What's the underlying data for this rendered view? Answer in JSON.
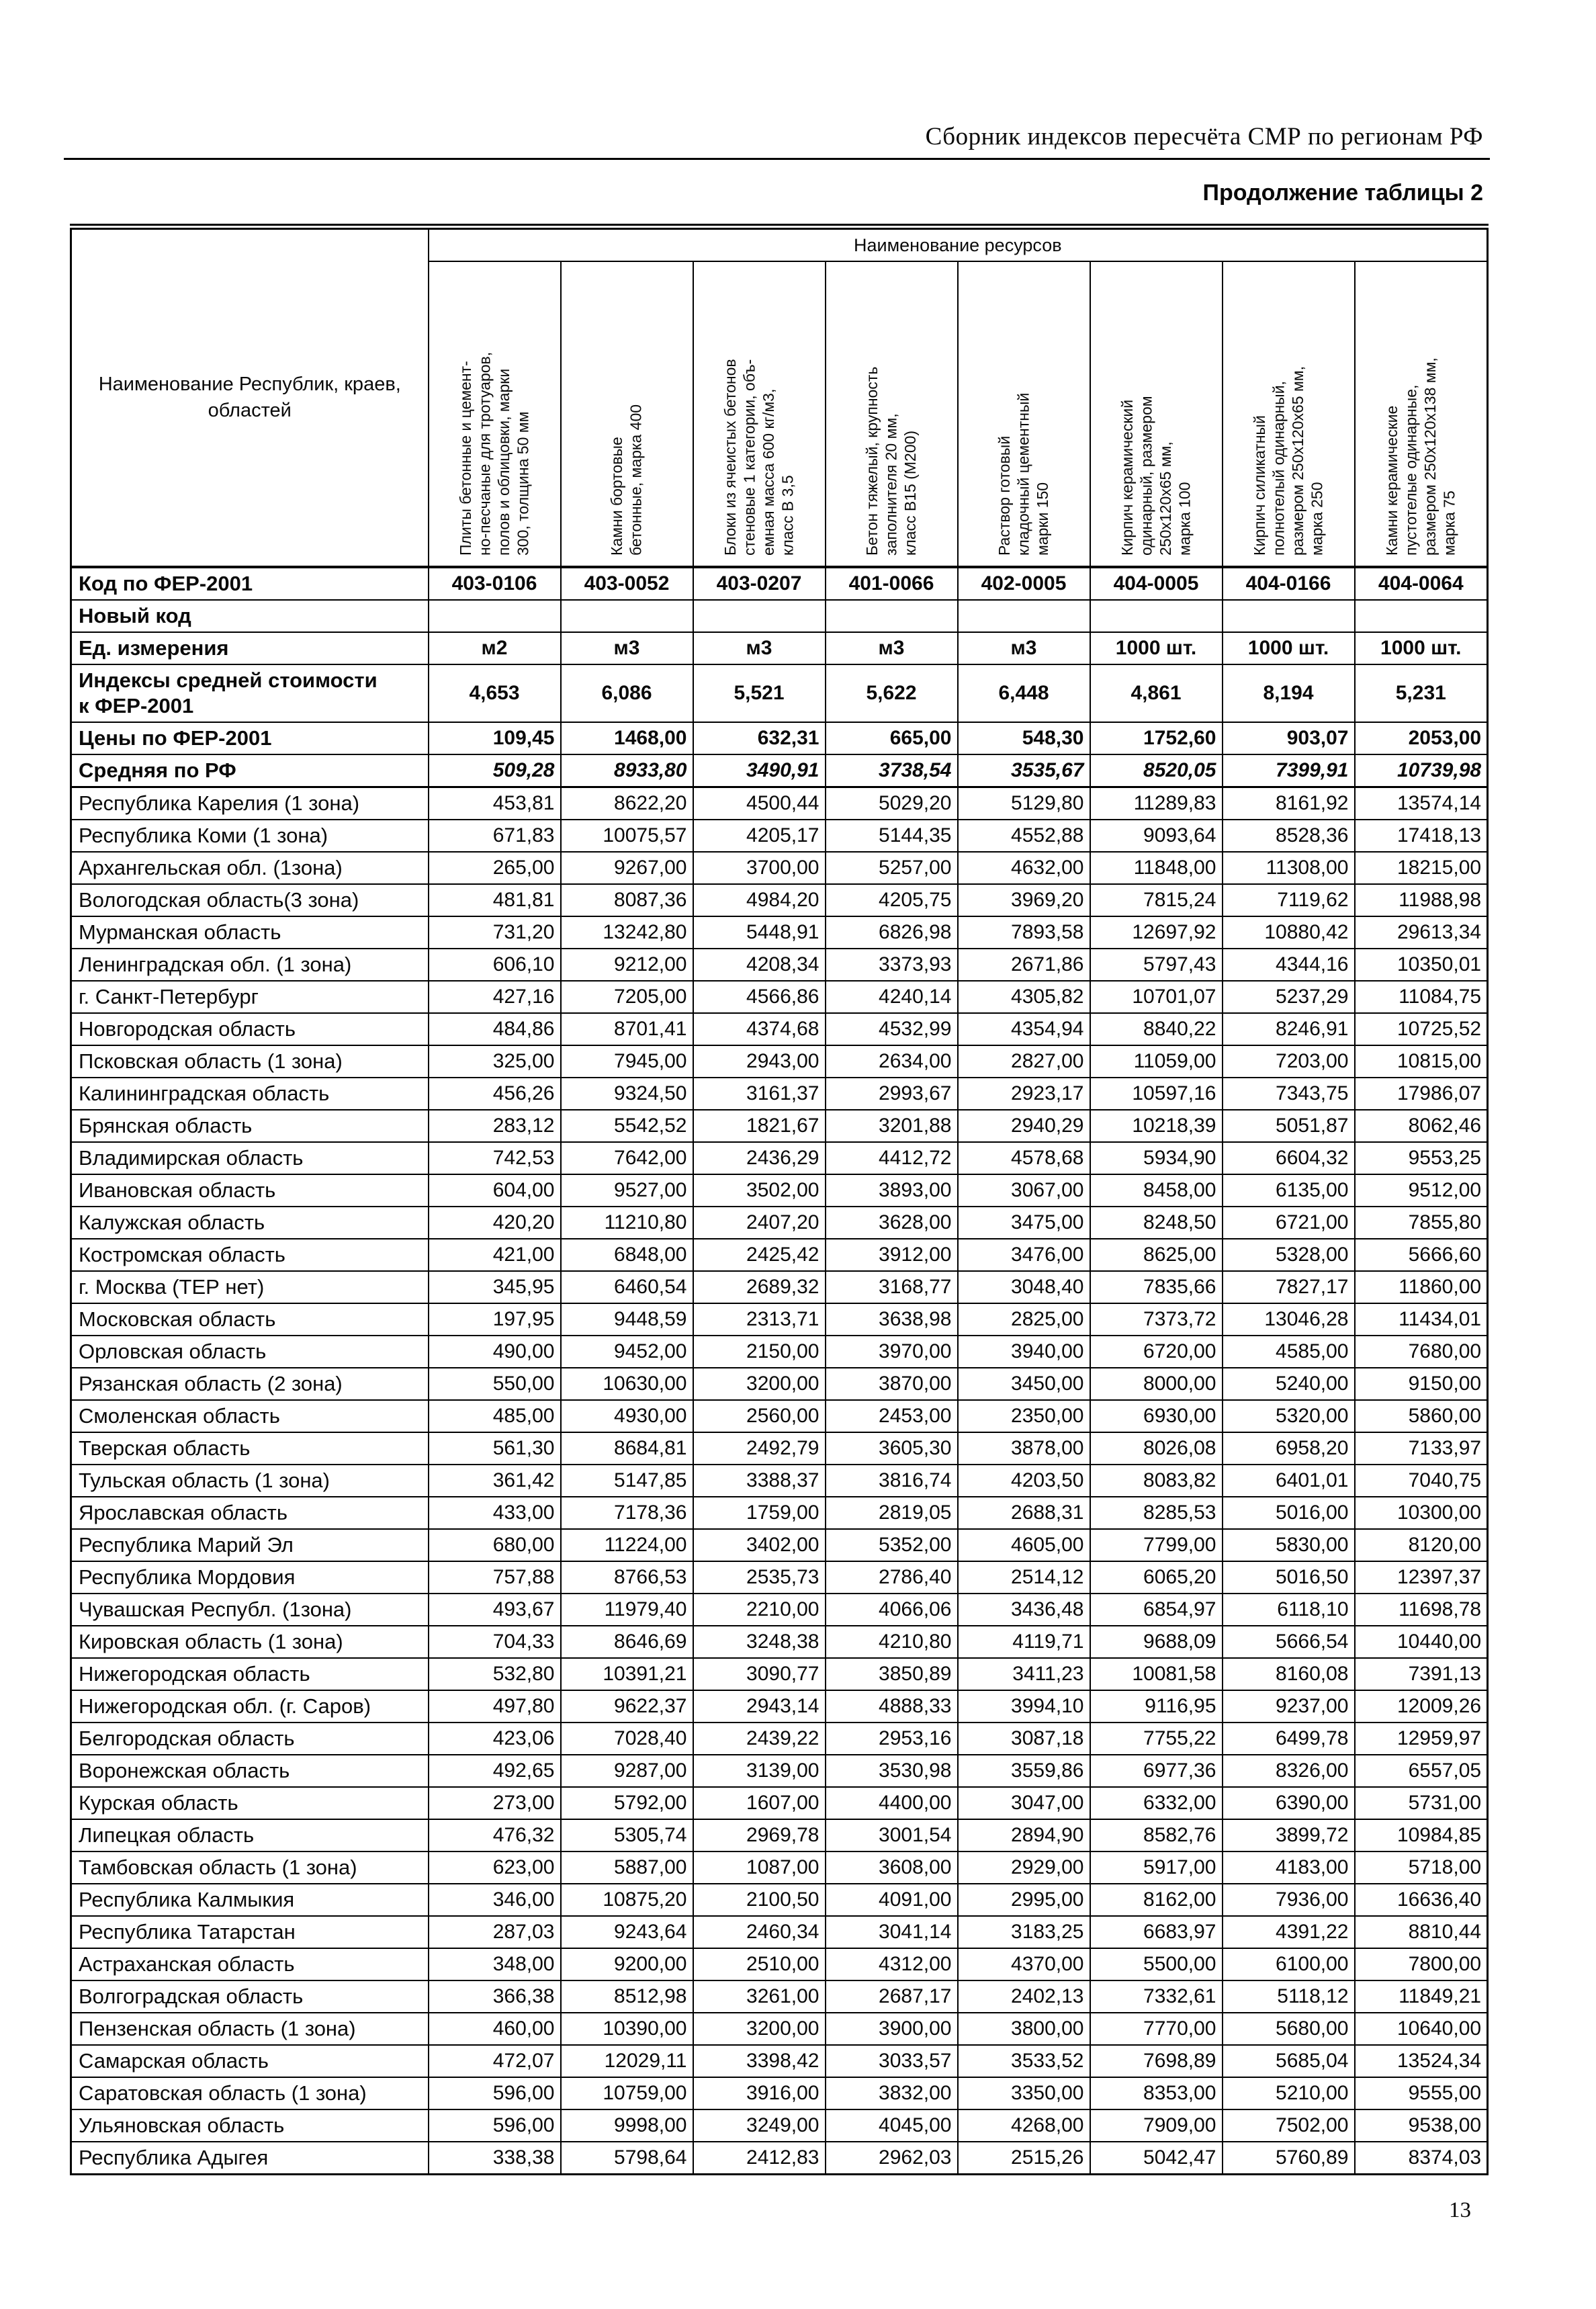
{
  "page": {
    "doc_header": "Сборник индексов пересчёта СМР  по регионам РФ",
    "table_caption": "Продолжение таблицы 2",
    "page_number": "13"
  },
  "table": {
    "name_column_header": "Наименование Республик, краев,\nобластей",
    "resources_header": "Наименование ресурсов",
    "resource_columns": [
      "Плиты  бетонные и цемент-\nно-песчаные  для тротуаров,\nполов и облицовки, марки\n300, толщина 50 мм",
      "Камни бортовые\nбетонные, марка 400",
      "Блоки из ячеистых бетонов\nстеновые 1 категории, объ-\nемная масса 600 кг/м3,\nкласс В 3,5",
      "Бетон тяжелый, крупность\nзаполнителя 20 мм,\nкласс В15 (М200)",
      "Раствор готовый\nкладочный цементный\nмарки 150",
      "Кирпич керамический\nодинарный, размером\n250х120х65 мм,\nмарка 100",
      "Кирпич силикатный\nполнотелый одинарный,\nразмером 250х120х65 мм,\nмарка 250",
      "Камни керамические\nпустотелые одинарные,\nразмером 250х120х138 мм,\nмарка 75"
    ],
    "meta_rows": [
      {
        "label": "Код по ФЕР-2001",
        "values": [
          "403-0106",
          "403-0052",
          "403-0207",
          "401-0066",
          "402-0005",
          "404-0005",
          "404-0166",
          "404-0064"
        ]
      },
      {
        "label": "Новый код",
        "values": [
          "",
          "",
          "",
          "",
          "",
          "",
          "",
          ""
        ]
      },
      {
        "label": "Ед. измерения",
        "values": [
          "м2",
          "м3",
          "м3",
          "м3",
          "м3",
          "1000 шт.",
          "1000 шт.",
          "1000 шт."
        ]
      },
      {
        "label": "Индексы средней стоимости\nк ФЕР-2001",
        "values": [
          "4,653",
          "6,086",
          "5,521",
          "5,622",
          "6,448",
          "4,861",
          "8,194",
          "5,231"
        ]
      },
      {
        "label": "Цены по ФЕР-2001",
        "values": [
          "109,45",
          "1468,00",
          "632,31",
          "665,00",
          "548,30",
          "1752,60",
          "903,07",
          "2053,00"
        ]
      },
      {
        "label": "Средняя по РФ",
        "values": [
          "509,28",
          "8933,80",
          "3490,91",
          "3738,54",
          "3535,67",
          "8520,05",
          "7399,91",
          "10739,98"
        ]
      }
    ],
    "regions": [
      {
        "name": "Республика Карелия (1 зона)",
        "values": [
          "453,81",
          "8622,20",
          "4500,44",
          "5029,20",
          "5129,80",
          "11289,83",
          "8161,92",
          "13574,14"
        ]
      },
      {
        "name": "Республика Коми (1 зона)",
        "values": [
          "671,83",
          "10075,57",
          "4205,17",
          "5144,35",
          "4552,88",
          "9093,64",
          "8528,36",
          "17418,13"
        ]
      },
      {
        "name": "Архангельская обл. (1зона)",
        "values": [
          "265,00",
          "9267,00",
          "3700,00",
          "5257,00",
          "4632,00",
          "11848,00",
          "11308,00",
          "18215,00"
        ]
      },
      {
        "name": "Вологодская область(3 зона)",
        "values": [
          "481,81",
          "8087,36",
          "4984,20",
          "4205,75",
          "3969,20",
          "7815,24",
          "7119,62",
          "11988,98"
        ]
      },
      {
        "name": "Мурманская область",
        "values": [
          "731,20",
          "13242,80",
          "5448,91",
          "6826,98",
          "7893,58",
          "12697,92",
          "10880,42",
          "29613,34"
        ]
      },
      {
        "name": "Ленинградская обл. (1 зона)",
        "values": [
          "606,10",
          "9212,00",
          "4208,34",
          "3373,93",
          "2671,86",
          "5797,43",
          "4344,16",
          "10350,01"
        ]
      },
      {
        "name": "г. Санкт-Петербург",
        "values": [
          "427,16",
          "7205,00",
          "4566,86",
          "4240,14",
          "4305,82",
          "10701,07",
          "5237,29",
          "11084,75"
        ]
      },
      {
        "name": "Новгородская область",
        "values": [
          "484,86",
          "8701,41",
          "4374,68",
          "4532,99",
          "4354,94",
          "8840,22",
          "8246,91",
          "10725,52"
        ]
      },
      {
        "name": "Псковская область (1 зона)",
        "values": [
          "325,00",
          "7945,00",
          "2943,00",
          "2634,00",
          "2827,00",
          "11059,00",
          "7203,00",
          "10815,00"
        ]
      },
      {
        "name": "Калининградская область",
        "values": [
          "456,26",
          "9324,50",
          "3161,37",
          "2993,67",
          "2923,17",
          "10597,16",
          "7343,75",
          "17986,07"
        ]
      },
      {
        "name": "Брянская область",
        "values": [
          "283,12",
          "5542,52",
          "1821,67",
          "3201,88",
          "2940,29",
          "10218,39",
          "5051,87",
          "8062,46"
        ]
      },
      {
        "name": "Владимирская область",
        "values": [
          "742,53",
          "7642,00",
          "2436,29",
          "4412,72",
          "4578,68",
          "5934,90",
          "6604,32",
          "9553,25"
        ]
      },
      {
        "name": "Ивановская область",
        "values": [
          "604,00",
          "9527,00",
          "3502,00",
          "3893,00",
          "3067,00",
          "8458,00",
          "6135,00",
          "9512,00"
        ]
      },
      {
        "name": "Калужская область",
        "values": [
          "420,20",
          "11210,80",
          "2407,20",
          "3628,00",
          "3475,00",
          "8248,50",
          "6721,00",
          "7855,80"
        ]
      },
      {
        "name": "Костромская область",
        "values": [
          "421,00",
          "6848,00",
          "2425,42",
          "3912,00",
          "3476,00",
          "8625,00",
          "5328,00",
          "5666,60"
        ]
      },
      {
        "name": "г. Москва (ТЕР нет)",
        "values": [
          "345,95",
          "6460,54",
          "2689,32",
          "3168,77",
          "3048,40",
          "7835,66",
          "7827,17",
          "11860,00"
        ]
      },
      {
        "name": "Московская область",
        "values": [
          "197,95",
          "9448,59",
          "2313,71",
          "3638,98",
          "2825,00",
          "7373,72",
          "13046,28",
          "11434,01"
        ]
      },
      {
        "name": "Орловская область",
        "values": [
          "490,00",
          "9452,00",
          "2150,00",
          "3970,00",
          "3940,00",
          "6720,00",
          "4585,00",
          "7680,00"
        ]
      },
      {
        "name": "Рязанская область (2 зона)",
        "values": [
          "550,00",
          "10630,00",
          "3200,00",
          "3870,00",
          "3450,00",
          "8000,00",
          "5240,00",
          "9150,00"
        ]
      },
      {
        "name": "Смоленская область",
        "values": [
          "485,00",
          "4930,00",
          "2560,00",
          "2453,00",
          "2350,00",
          "6930,00",
          "5320,00",
          "5860,00"
        ]
      },
      {
        "name": "Тверская область",
        "values": [
          "561,30",
          "8684,81",
          "2492,79",
          "3605,30",
          "3878,00",
          "8026,08",
          "6958,20",
          "7133,97"
        ]
      },
      {
        "name": "Тульская область (1 зона)",
        "values": [
          "361,42",
          "5147,85",
          "3388,37",
          "3816,74",
          "4203,50",
          "8083,82",
          "6401,01",
          "7040,75"
        ]
      },
      {
        "name": "Ярославская область",
        "values": [
          "433,00",
          "7178,36",
          "1759,00",
          "2819,05",
          "2688,31",
          "8285,53",
          "5016,00",
          "10300,00"
        ]
      },
      {
        "name": "Республика Марий Эл",
        "values": [
          "680,00",
          "11224,00",
          "3402,00",
          "5352,00",
          "4605,00",
          "7799,00",
          "5830,00",
          "8120,00"
        ]
      },
      {
        "name": "Республика Мордовия",
        "values": [
          "757,88",
          "8766,53",
          "2535,73",
          "2786,40",
          "2514,12",
          "6065,20",
          "5016,50",
          "12397,37"
        ]
      },
      {
        "name": "Чувашская Республ. (1зона)",
        "values": [
          "493,67",
          "11979,40",
          "2210,00",
          "4066,06",
          "3436,48",
          "6854,97",
          "6118,10",
          "11698,78"
        ]
      },
      {
        "name": "Кировская область (1 зона)",
        "values": [
          "704,33",
          "8646,69",
          "3248,38",
          "4210,80",
          "4119,71",
          "9688,09",
          "5666,54",
          "10440,00"
        ]
      },
      {
        "name": "Нижегородская область",
        "values": [
          "532,80",
          "10391,21",
          "3090,77",
          "3850,89",
          "3411,23",
          "10081,58",
          "8160,08",
          "7391,13"
        ]
      },
      {
        "name": "Нижегородская обл. (г. Саров)",
        "values": [
          "497,80",
          "9622,37",
          "2943,14",
          "4888,33",
          "3994,10",
          "9116,95",
          "9237,00",
          "12009,26"
        ]
      },
      {
        "name": "Белгородская область",
        "values": [
          "423,06",
          "7028,40",
          "2439,22",
          "2953,16",
          "3087,18",
          "7755,22",
          "6499,78",
          "12959,97"
        ]
      },
      {
        "name": "Воронежская область",
        "values": [
          "492,65",
          "9287,00",
          "3139,00",
          "3530,98",
          "3559,86",
          "6977,36",
          "8326,00",
          "6557,05"
        ]
      },
      {
        "name": "Курская область",
        "values": [
          "273,00",
          "5792,00",
          "1607,00",
          "4400,00",
          "3047,00",
          "6332,00",
          "6390,00",
          "5731,00"
        ]
      },
      {
        "name": "Липецкая область",
        "values": [
          "476,32",
          "5305,74",
          "2969,78",
          "3001,54",
          "2894,90",
          "8582,76",
          "3899,72",
          "10984,85"
        ]
      },
      {
        "name": "Тамбовская область (1 зона)",
        "values": [
          "623,00",
          "5887,00",
          "1087,00",
          "3608,00",
          "2929,00",
          "5917,00",
          "4183,00",
          "5718,00"
        ]
      },
      {
        "name": "Республика Калмыкия",
        "values": [
          "346,00",
          "10875,20",
          "2100,50",
          "4091,00",
          "2995,00",
          "8162,00",
          "7936,00",
          "16636,40"
        ]
      },
      {
        "name": "Республика Татарстан",
        "values": [
          "287,03",
          "9243,64",
          "2460,34",
          "3041,14",
          "3183,25",
          "6683,97",
          "4391,22",
          "8810,44"
        ]
      },
      {
        "name": "Астраханская область",
        "values": [
          "348,00",
          "9200,00",
          "2510,00",
          "4312,00",
          "4370,00",
          "5500,00",
          "6100,00",
          "7800,00"
        ]
      },
      {
        "name": "Волгоградская область",
        "values": [
          "366,38",
          "8512,98",
          "3261,00",
          "2687,17",
          "2402,13",
          "7332,61",
          "5118,12",
          "11849,21"
        ]
      },
      {
        "name": "Пензенская область (1 зона)",
        "values": [
          "460,00",
          "10390,00",
          "3200,00",
          "3900,00",
          "3800,00",
          "7770,00",
          "5680,00",
          "10640,00"
        ]
      },
      {
        "name": "Самарская область",
        "values": [
          "472,07",
          "12029,11",
          "3398,42",
          "3033,57",
          "3533,52",
          "7698,89",
          "5685,04",
          "13524,34"
        ]
      },
      {
        "name": "Саратовская область (1 зона)",
        "values": [
          "596,00",
          "10759,00",
          "3916,00",
          "3832,00",
          "3350,00",
          "8353,00",
          "5210,00",
          "9555,00"
        ]
      },
      {
        "name": "Ульяновская область",
        "values": [
          "596,00",
          "9998,00",
          "3249,00",
          "4045,00",
          "4268,00",
          "7909,00",
          "7502,00",
          "9538,00"
        ]
      },
      {
        "name": "Республика Адыгея",
        "values": [
          "338,38",
          "5798,64",
          "2412,83",
          "2962,03",
          "2515,26",
          "5042,47",
          "5760,89",
          "8374,03"
        ]
      }
    ]
  }
}
